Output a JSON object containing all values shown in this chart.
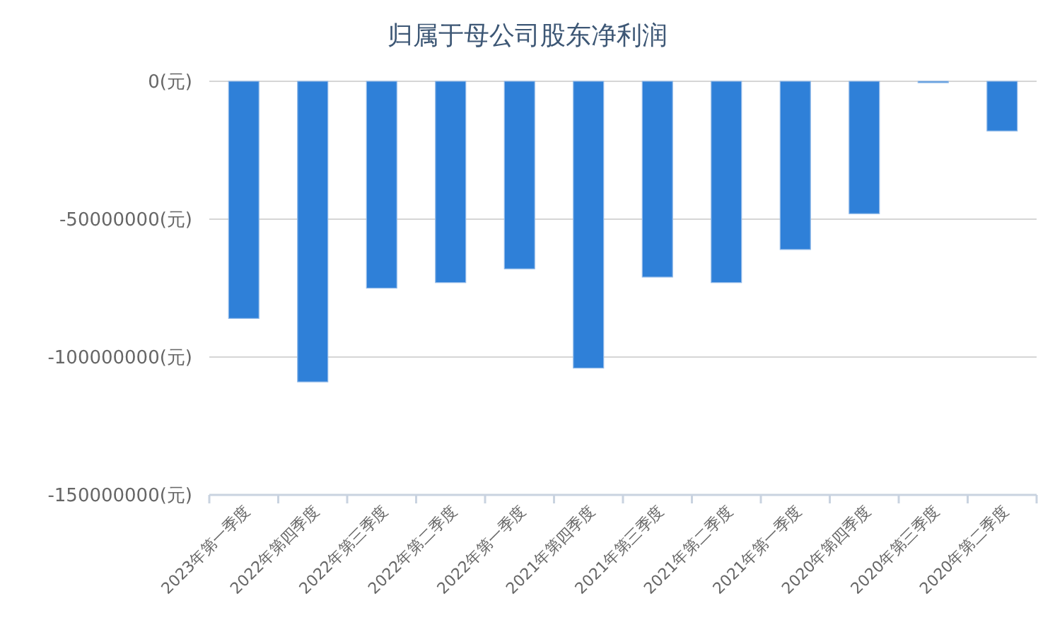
{
  "chart_data": {
    "type": "bar",
    "title": "归属于母公司股东净利润",
    "categories": [
      "2023年第一季度",
      "2022年第四季度",
      "2022年第三季度",
      "2022年第二季度",
      "2022年第一季度",
      "2021年第四季度",
      "2021年第三季度",
      "2021年第二季度",
      "2021年第一季度",
      "2020年第四季度",
      "2020年第三季度",
      "2020年第二季度"
    ],
    "values": [
      -86000000,
      -109000000,
      -75000000,
      -73000000,
      -68000000,
      -104000000,
      -71000000,
      -73000000,
      -61000000,
      -48000000,
      -500000,
      -18000000
    ],
    "color": "#2f80d8",
    "ylim": [
      -150000000,
      0
    ],
    "yticks": [
      {
        "value": -150000000,
        "label": "-150000000(元)"
      },
      {
        "value": -100000000,
        "label": "-100000000(元)"
      },
      {
        "value": -50000000,
        "label": "-50000000(元)"
      },
      {
        "value": 0,
        "label": "0(元)"
      }
    ],
    "grid": "y"
  }
}
